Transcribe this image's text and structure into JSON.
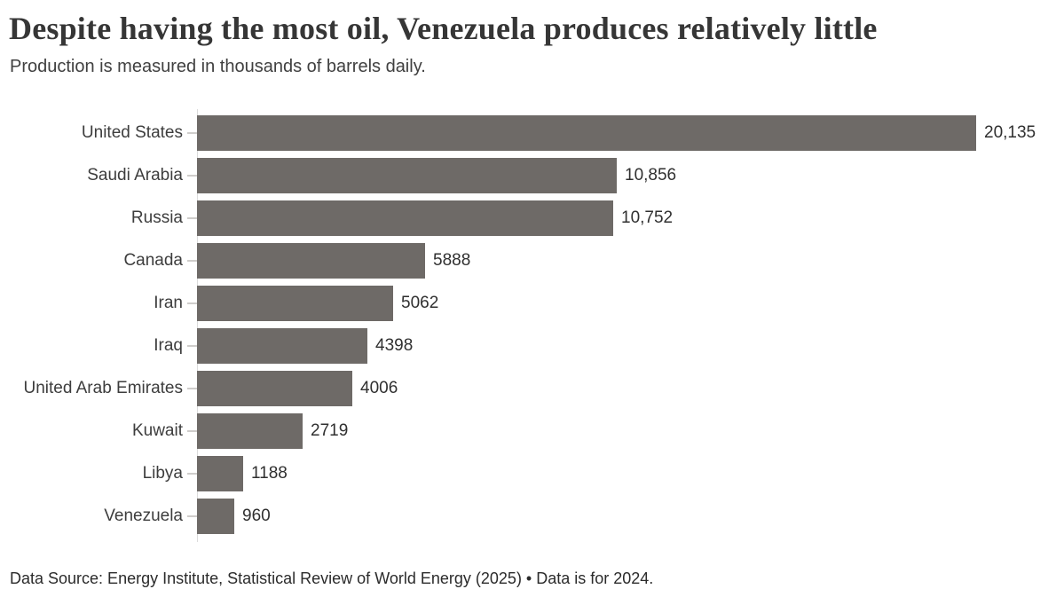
{
  "chart_data": {
    "type": "bar",
    "orientation": "horizontal",
    "title": "Despite having the most oil, Venezuela produces relatively little",
    "subtitle": "Production is measured in thousands of barrels daily.",
    "categories": [
      "United States",
      "Saudi Arabia",
      "Russia",
      "Canada",
      "Iran",
      "Iraq",
      "United Arab Emirates",
      "Kuwait",
      "Libya",
      "Venezuela"
    ],
    "values": [
      20135,
      10856,
      10752,
      5888,
      5062,
      4398,
      4006,
      2719,
      1188,
      960
    ],
    "value_labels": [
      "20,135",
      "10,856",
      "10,752",
      "5888",
      "5062",
      "4398",
      "4006",
      "2719",
      "1188",
      "960"
    ],
    "xlabel": "",
    "ylabel": "",
    "xlim": [
      0,
      20135
    ],
    "grid": false,
    "legend": false,
    "bar_color": "#6e6a67",
    "axis_color": "#dcdcdc",
    "tick_color": "#cfcdcb"
  },
  "footer": {
    "text": "Data Source: Energy Institute, Statistical Review of World Energy (2025) • Data is for 2024."
  }
}
